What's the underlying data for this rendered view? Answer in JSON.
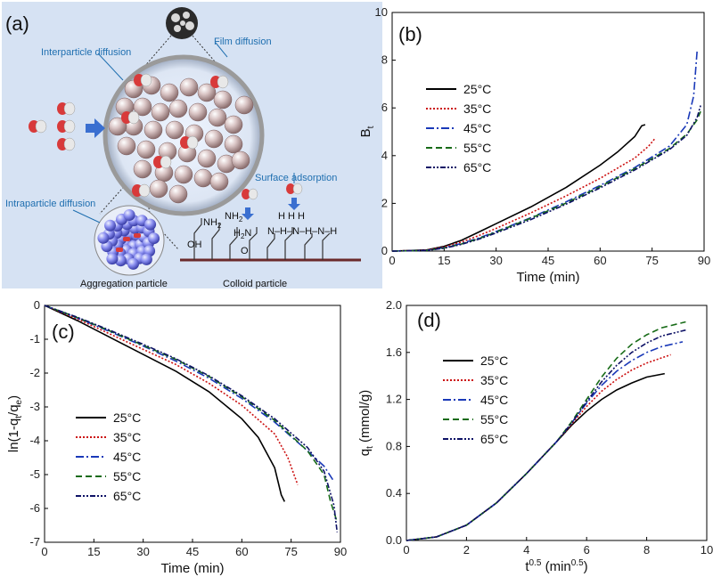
{
  "panel_a": {
    "label": "(a)",
    "texts": {
      "interparticle": "Interparticle diffusion",
      "film": "Film diffusion",
      "intraparticle": "Intraparticle diffusion",
      "surface": "Surface adsorption",
      "aggregation": "Aggregation particle",
      "colloid": "Colloid particle",
      "oh": "OH",
      "nh2a": "NH",
      "nh2b": "NH",
      "h2n": "H",
      "o": "O",
      "chainH": "H   H   H",
      "chainN": "N–H–N–H–N–H"
    },
    "colors": {
      "background": "#d6e2f3",
      "particle": "#c9b4b4",
      "bead": "#7b7ee6",
      "adsorbate": "#d83a3a"
    }
  },
  "chart_data": [
    {
      "panel": "(b)",
      "type": "line",
      "xlabel": "Time (min)",
      "ylabel": "B",
      "ylabel_sub": "t",
      "xlim": [
        0,
        90
      ],
      "ylim": [
        0,
        10
      ],
      "xticks": [
        0,
        15,
        30,
        45,
        60,
        75,
        90
      ],
      "yticks": [
        0,
        2,
        4,
        6,
        8,
        10
      ],
      "legend_position": "upper-left",
      "series": [
        {
          "name": "25°C",
          "color": "#000000",
          "dash": "",
          "x": [
            0,
            10,
            15,
            20,
            25,
            30,
            40,
            50,
            60,
            65,
            70,
            72,
            73
          ],
          "y": [
            0,
            0.05,
            0.2,
            0.45,
            0.8,
            1.15,
            1.85,
            2.65,
            3.6,
            4.15,
            4.8,
            5.25,
            5.3
          ]
        },
        {
          "name": "35°C",
          "color": "#cc1111",
          "dash": "2,2",
          "x": [
            0,
            10,
            15,
            20,
            25,
            30,
            40,
            50,
            60,
            70,
            74,
            76
          ],
          "y": [
            0,
            0.04,
            0.17,
            0.38,
            0.65,
            0.95,
            1.6,
            2.3,
            3.05,
            3.9,
            4.4,
            4.75
          ]
        },
        {
          "name": "45°C",
          "color": "#1a39b8",
          "dash": "9,3,2,3",
          "x": [
            0,
            10,
            15,
            20,
            25,
            30,
            40,
            50,
            60,
            70,
            80,
            85,
            87,
            88
          ],
          "y": [
            0,
            0.03,
            0.14,
            0.32,
            0.55,
            0.82,
            1.4,
            2.05,
            2.75,
            3.5,
            4.4,
            5.3,
            6.5,
            8.4
          ]
        },
        {
          "name": "55°C",
          "color": "#176b17",
          "dash": "7,4",
          "x": [
            0,
            10,
            15,
            20,
            25,
            30,
            40,
            50,
            60,
            70,
            80,
            85,
            88,
            89
          ],
          "y": [
            0,
            0.03,
            0.13,
            0.3,
            0.52,
            0.8,
            1.38,
            2.0,
            2.7,
            3.45,
            4.3,
            4.9,
            5.5,
            5.85
          ]
        },
        {
          "name": "65°C",
          "color": "#0e1266",
          "dash": "6,2,2,2,2,2",
          "x": [
            0,
            10,
            15,
            20,
            25,
            30,
            40,
            50,
            60,
            70,
            80,
            85,
            88,
            89
          ],
          "y": [
            0,
            0.03,
            0.12,
            0.28,
            0.5,
            0.76,
            1.32,
            1.95,
            2.65,
            3.4,
            4.25,
            4.85,
            5.6,
            6.1
          ]
        }
      ]
    },
    {
      "panel": "(c)",
      "type": "line",
      "xlabel": "Time (min)",
      "ylabel": "ln(1-q",
      "ylabel_sub": "t",
      "ylabel_mid": "/q",
      "ylabel_sub2": "e",
      "ylabel_end": ")",
      "xlim": [
        0,
        90
      ],
      "ylim": [
        -7,
        0
      ],
      "xticks": [
        0,
        15,
        30,
        45,
        60,
        75,
        90
      ],
      "yticks": [
        0,
        -1,
        -2,
        -3,
        -4,
        -5,
        -6,
        -7
      ],
      "legend_position": "lower-left",
      "series": [
        {
          "name": "25°C",
          "color": "#000000",
          "dash": "",
          "x": [
            0,
            10,
            20,
            30,
            40,
            50,
            60,
            65,
            70,
            72,
            73
          ],
          "y": [
            0,
            -0.45,
            -0.95,
            -1.45,
            -1.95,
            -2.55,
            -3.35,
            -3.9,
            -4.8,
            -5.6,
            -5.8
          ]
        },
        {
          "name": "35°C",
          "color": "#cc1111",
          "dash": "2,2",
          "x": [
            0,
            10,
            20,
            30,
            40,
            50,
            60,
            70,
            74,
            77
          ],
          "y": [
            0,
            -0.4,
            -0.85,
            -1.3,
            -1.75,
            -2.3,
            -2.95,
            -3.8,
            -4.5,
            -5.3
          ]
        },
        {
          "name": "45°C",
          "color": "#1a39b8",
          "dash": "9,3,2,3",
          "x": [
            0,
            10,
            20,
            30,
            40,
            50,
            60,
            70,
            80,
            85,
            88
          ],
          "y": [
            0,
            -0.37,
            -0.78,
            -1.2,
            -1.65,
            -2.15,
            -2.75,
            -3.45,
            -4.3,
            -4.75,
            -5.2
          ]
        },
        {
          "name": "55°C",
          "color": "#176b17",
          "dash": "7,4",
          "x": [
            0,
            10,
            20,
            30,
            40,
            50,
            60,
            70,
            80,
            85,
            87,
            89
          ],
          "y": [
            0,
            -0.36,
            -0.76,
            -1.18,
            -1.6,
            -2.1,
            -2.7,
            -3.4,
            -4.3,
            -5.0,
            -5.8,
            -6.4
          ]
        },
        {
          "name": "65°C",
          "color": "#0e1266",
          "dash": "6,2,2,2,2,2",
          "x": [
            0,
            10,
            20,
            30,
            40,
            50,
            60,
            70,
            80,
            85,
            88,
            89
          ],
          "y": [
            0,
            -0.35,
            -0.74,
            -1.15,
            -1.58,
            -2.08,
            -2.67,
            -3.35,
            -4.2,
            -4.9,
            -5.9,
            -6.7
          ]
        }
      ]
    },
    {
      "panel": "(d)",
      "type": "line",
      "xlabel": "t",
      "xlabel_sup": "0.5",
      "xlabel_end": " (min",
      "xlabel_sup2": "0.5",
      "xlabel_close": ")",
      "ylabel": "q",
      "ylabel_sub": "t",
      "ylabel_end": " (mmol/g)",
      "xlim": [
        0,
        10
      ],
      "ylim": [
        0,
        2.0
      ],
      "xticks": [
        0,
        2,
        4,
        6,
        8,
        10
      ],
      "yticks": [
        0.0,
        0.4,
        0.8,
        1.2,
        1.6,
        2.0
      ],
      "ytick_labels": [
        "0.0",
        "0.4",
        "0.8",
        "1.2",
        "1.6",
        "2.0"
      ],
      "legend_position": "upper-left",
      "series": [
        {
          "name": "25°C",
          "color": "#000000",
          "dash": "",
          "x": [
            0,
            1,
            2,
            3,
            4,
            5,
            5.5,
            6,
            6.5,
            7,
            7.5,
            8,
            8.6
          ],
          "y": [
            0,
            0.03,
            0.13,
            0.32,
            0.57,
            0.84,
            0.98,
            1.1,
            1.2,
            1.28,
            1.34,
            1.39,
            1.42
          ]
        },
        {
          "name": "35°C",
          "color": "#cc1111",
          "dash": "2,2",
          "x": [
            0,
            1,
            2,
            3,
            4,
            5,
            5.5,
            6,
            6.5,
            7,
            7.5,
            8,
            8.8
          ],
          "y": [
            0,
            0.03,
            0.13,
            0.32,
            0.57,
            0.84,
            0.99,
            1.14,
            1.27,
            1.37,
            1.45,
            1.51,
            1.58
          ]
        },
        {
          "name": "45°C",
          "color": "#1a39b8",
          "dash": "9,3,2,3",
          "x": [
            0,
            1,
            2,
            3,
            4,
            5,
            5.5,
            6,
            6.5,
            7,
            7.5,
            8,
            8.5,
            9.2
          ],
          "y": [
            0,
            0.03,
            0.13,
            0.32,
            0.57,
            0.84,
            1.0,
            1.17,
            1.32,
            1.44,
            1.53,
            1.6,
            1.65,
            1.69
          ]
        },
        {
          "name": "55°C",
          "color": "#176b17",
          "dash": "7,4",
          "x": [
            0,
            1,
            2,
            3,
            4,
            5,
            5.5,
            6,
            6.5,
            7,
            7.5,
            8,
            8.5,
            9.3
          ],
          "y": [
            0,
            0.03,
            0.13,
            0.32,
            0.57,
            0.84,
            1.01,
            1.2,
            1.39,
            1.55,
            1.67,
            1.75,
            1.81,
            1.86
          ]
        },
        {
          "name": "65°C",
          "color": "#0e1266",
          "dash": "6,2,2,2,2,2",
          "x": [
            0,
            1,
            2,
            3,
            4,
            5,
            5.5,
            6,
            6.5,
            7,
            7.5,
            8,
            8.5,
            9.3
          ],
          "y": [
            0,
            0.03,
            0.13,
            0.32,
            0.57,
            0.84,
            1.0,
            1.18,
            1.35,
            1.49,
            1.6,
            1.68,
            1.74,
            1.79
          ]
        }
      ]
    }
  ]
}
